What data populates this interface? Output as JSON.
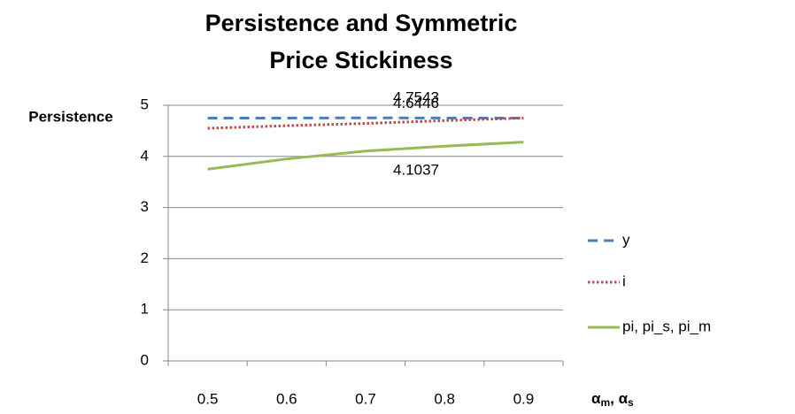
{
  "chart_data": {
    "type": "line",
    "title": [
      "Persistence and Symmetric",
      "Price Stickiness"
    ],
    "ylabel": "Persistence",
    "xlabel": [
      "α",
      "m",
      ", α",
      "s"
    ],
    "categories": [
      "0.5",
      "0.6",
      "0.7",
      "0.8",
      "0.9"
    ],
    "series": [
      {
        "name": "y",
        "color": "#4a7ebb",
        "dash": "dashed",
        "values": [
          4.75,
          4.75,
          4.7543,
          4.75,
          4.75
        ],
        "label_index": 2
      },
      {
        "name": "i",
        "color": "#be4b48",
        "dash": "dotted",
        "values": [
          4.55,
          4.6,
          4.6446,
          4.7,
          4.75
        ],
        "label_index": 2
      },
      {
        "name": "pi, pi_s, pi_m",
        "color": "#98b954",
        "dash": "solid",
        "values": [
          3.75,
          3.95,
          4.1037,
          4.2,
          4.28
        ],
        "label_index": 2
      }
    ],
    "ylim": [
      0,
      5
    ],
    "yticks": [
      0,
      1,
      2,
      3,
      4,
      5
    ],
    "grid": true,
    "legend": "right"
  }
}
